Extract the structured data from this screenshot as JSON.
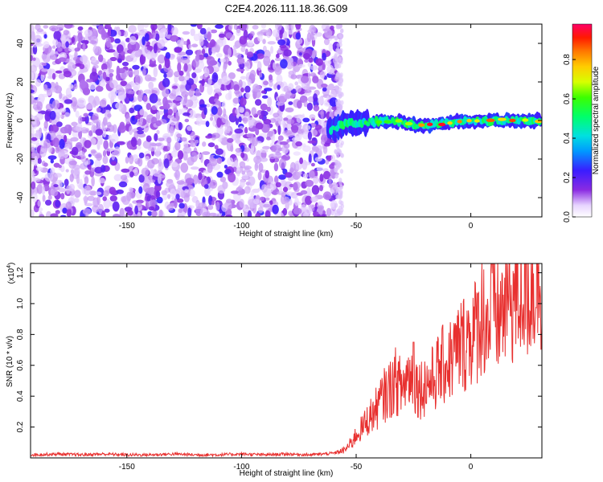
{
  "title": "C2E4.2026.111.18.36.G09",
  "chart_data": [
    {
      "type": "heatmap",
      "title": "C2E4.2026.111.18.36.G09",
      "xlabel": "Height of straight line (km)",
      "ylabel": "Frequency (Hz)",
      "xlim": [
        -192,
        31
      ],
      "ylim": [
        -50,
        50
      ],
      "x_ticks": [
        -150,
        -100,
        -50,
        0
      ],
      "y_ticks": [
        -40,
        -20,
        0,
        20,
        40
      ],
      "grid": false,
      "regions": {
        "noise_band": {
          "x_range": [
            -192,
            -57
          ],
          "y_range": [
            -50,
            50
          ],
          "amplitude": [
            0.05,
            0.25
          ]
        },
        "signal_ridge": {
          "x_range": [
            -62,
            31
          ],
          "center_freq_hz": [
            {
              "x": -62,
              "y": -5
            },
            {
              "x": -55,
              "y": -2
            },
            {
              "x": -45,
              "y": -1
            },
            {
              "x": -35,
              "y": 0
            },
            {
              "x": -20,
              "y": -3
            },
            {
              "x": -10,
              "y": -1
            },
            {
              "x": 0,
              "y": 0
            },
            {
              "x": 31,
              "y": 0
            }
          ],
          "amplitude": [
            0.3,
            1.0
          ]
        }
      },
      "colorbar": {
        "label": "Normalized spectral amplitude",
        "ticks": [
          "0.0",
          "0.2",
          "0.4",
          "0.6",
          "0.8"
        ],
        "tick_values": [
          0.0,
          0.2,
          0.4,
          0.6,
          0.8
        ],
        "range": [
          0.0,
          0.98
        ]
      }
    },
    {
      "type": "line",
      "xlabel": "Height of straight line (km)",
      "ylabel": "SNR (10 * v/v)",
      "y_multiplier_label": "(x10",
      "y_multiplier_exp": "4",
      "y_multiplier_close": ")",
      "xlim": [
        -192,
        31
      ],
      "ylim": [
        0.0,
        1.26
      ],
      "x_ticks": [
        -150,
        -100,
        -50,
        0
      ],
      "y_ticks": [
        0.2,
        0.4,
        0.6,
        0.8,
        1.0,
        1.2
      ],
      "y_tick_labels": [
        "0.2",
        "0.4",
        "0.6",
        "0.8",
        "1.0",
        "1.2"
      ],
      "series": [
        {
          "name": "SNR",
          "color": "#e8302f",
          "x": [
            -192,
            -180,
            -170,
            -160,
            -150,
            -140,
            -130,
            -120,
            -110,
            -100,
            -90,
            -80,
            -70,
            -60,
            -55,
            -52,
            -50,
            -47,
            -45,
            -42,
            -40,
            -38,
            -35,
            -33,
            -30,
            -27,
            -25,
            -22,
            -20,
            -17,
            -15,
            -12,
            -10,
            -8,
            -5,
            -3,
            0,
            2,
            5,
            8,
            10,
            12,
            15,
            18,
            20,
            22,
            25,
            28,
            31
          ],
          "values": [
            0.02,
            0.025,
            0.02,
            0.025,
            0.02,
            0.02,
            0.025,
            0.02,
            0.02,
            0.025,
            0.02,
            0.025,
            0.02,
            0.03,
            0.05,
            0.1,
            0.15,
            0.2,
            0.25,
            0.3,
            0.35,
            0.4,
            0.45,
            0.5,
            0.45,
            0.55,
            0.5,
            0.45,
            0.48,
            0.5,
            0.55,
            0.6,
            0.62,
            0.65,
            0.72,
            0.75,
            0.8,
            0.82,
            0.95,
            0.85,
            1.0,
            0.9,
            1.0,
            1.05,
            1.05,
            1.1,
            1.1,
            1.15,
            1.2
          ]
        }
      ]
    }
  ]
}
